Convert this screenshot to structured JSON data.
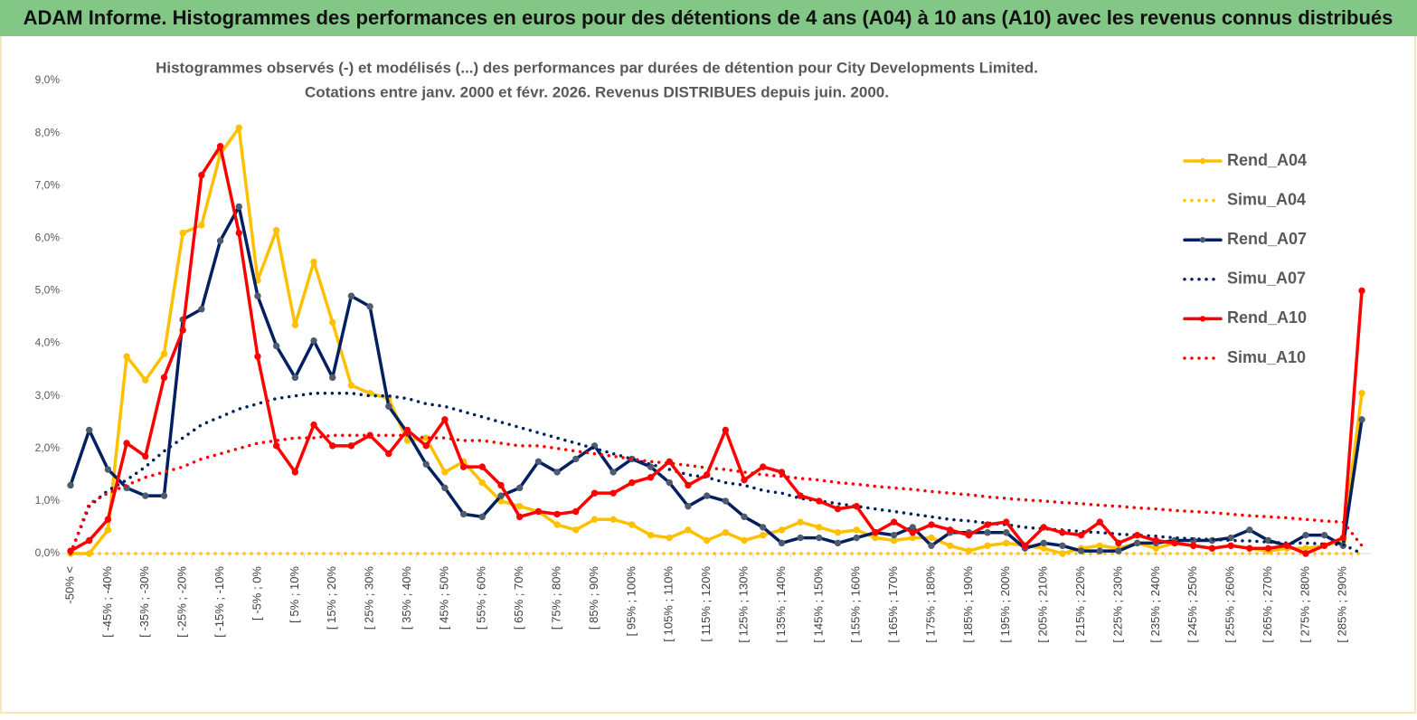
{
  "header": {
    "title": "ADAM Informe. Histogrammes des performances en euros pour des détentions de 4 ans (A04) à 10 ans (A10) avec les revenus connus distribués"
  },
  "chart_data": {
    "type": "line",
    "title": [
      "Histogrammes observés (-) et modélisés (...) des performances par durées de détention pour City Developments Limited.",
      "Cotations entre janv. 2000 et févr. 2026. Revenus DISTRIBUES depuis juin. 2000."
    ],
    "categories": [
      "-50% <",
      null,
      "[ -45% ; -40%",
      null,
      "[ -35% ; -30%",
      null,
      "[ -25% ; -20%",
      null,
      "[ -15% ; -10%",
      null,
      "[ -5% ; 0%",
      null,
      "[ 5% ; 10%",
      null,
      "[ 15% ; 20%",
      null,
      "[ 25% ; 30%",
      null,
      "[ 35% ; 40%",
      null,
      "[ 45% ; 50%",
      null,
      "[ 55% ; 60%",
      null,
      "[ 65% ; 70%",
      null,
      "[ 75% ; 80%",
      null,
      "[ 85% ; 90%",
      null,
      "[ 95% ; 100%",
      null,
      "[ 105% ; 110%",
      null,
      "[ 115% ; 120%",
      null,
      "[ 125% ; 130%",
      null,
      "[ 135% ; 140%",
      null,
      "[ 145% ; 150%",
      null,
      "[ 155% ; 160%",
      null,
      "[ 165% ; 170%",
      null,
      "[ 175% ; 180%",
      null,
      "[ 185% ; 190%",
      null,
      "[ 195% ; 200%",
      null,
      "[ 205% ; 210%",
      null,
      "[ 215% ; 220%",
      null,
      "[ 225% ; 230%",
      null,
      "[ 235% ; 240%",
      null,
      "[ 245% ; 250%",
      null,
      "[ 255% ; 260%",
      null,
      "[ 265% ; 270%",
      null,
      "[ 275% ; 280%",
      null,
      "[ 285% ; 290%",
      null
    ],
    "series": [
      {
        "name": "Rend_A04",
        "color": "#ffc000",
        "style": "solid",
        "markers": true,
        "values": [
          0,
          0,
          0.45,
          3.75,
          3.3,
          3.8,
          6.1,
          6.25,
          7.6,
          8.1,
          5.2,
          6.15,
          4.35,
          5.55,
          4.4,
          3.2,
          3.05,
          2.95,
          2.15,
          2.2,
          1.55,
          1.75,
          1.35,
          1.0,
          0.9,
          0.8,
          0.55,
          0.45,
          0.65,
          0.65,
          0.55,
          0.35,
          0.3,
          0.45,
          0.25,
          0.4,
          0.25,
          0.35,
          0.45,
          0.6,
          0.5,
          0.4,
          0.45,
          0.3,
          0.25,
          0.3,
          0.3,
          0.15,
          0.05,
          0.15,
          0.2,
          0.15,
          0.1,
          0,
          0.1,
          0.15,
          0.1,
          0.2,
          0.1,
          0.2,
          0.15,
          0.1,
          0.15,
          0.1,
          0.05,
          0.1,
          0.1,
          0.15,
          0.25,
          3.05
        ]
      },
      {
        "name": "Simu_A04",
        "color": "#ffc000",
        "style": "dotted",
        "markers": false,
        "values": [
          0,
          0,
          0,
          0,
          0,
          0,
          0,
          0,
          0,
          0,
          0,
          0,
          0,
          0,
          0,
          0,
          0,
          0,
          0,
          0,
          0,
          0,
          0,
          0,
          0,
          0,
          0,
          0,
          0,
          0,
          0,
          0,
          0,
          0,
          0,
          0,
          0,
          0,
          0,
          0,
          0,
          0,
          0,
          0,
          0,
          0,
          0,
          0,
          0,
          0,
          0,
          0,
          0,
          0,
          0,
          0,
          0,
          0,
          0,
          0,
          0,
          0,
          0,
          0,
          0,
          0,
          0,
          0,
          0,
          0
        ]
      },
      {
        "name": "Rend_A07",
        "color": "#002060",
        "marker_color": "#4f5b6e",
        "style": "solid",
        "markers": true,
        "values": [
          1.3,
          2.35,
          1.6,
          1.25,
          1.1,
          1.1,
          4.45,
          4.65,
          5.95,
          6.6,
          4.9,
          3.95,
          3.35,
          4.05,
          3.35,
          4.9,
          4.7,
          2.8,
          2.3,
          1.7,
          1.25,
          0.75,
          0.7,
          1.1,
          1.25,
          1.75,
          1.55,
          1.8,
          2.05,
          1.55,
          1.8,
          1.65,
          1.35,
          0.9,
          1.1,
          1.0,
          0.7,
          0.5,
          0.2,
          0.3,
          0.3,
          0.2,
          0.3,
          0.4,
          0.35,
          0.5,
          0.15,
          0.4,
          0.4,
          0.4,
          0.4,
          0.1,
          0.2,
          0.15,
          0.05,
          0.05,
          0.05,
          0.2,
          0.2,
          0.25,
          0.25,
          0.25,
          0.3,
          0.45,
          0.25,
          0.15,
          0.35,
          0.35,
          0.15,
          2.55
        ]
      },
      {
        "name": "Simu_A07",
        "color": "#002060",
        "style": "dotted",
        "markers": false,
        "values": [
          0,
          0.9,
          1.2,
          1.4,
          1.65,
          1.95,
          2.2,
          2.45,
          2.6,
          2.75,
          2.85,
          2.95,
          3.0,
          3.05,
          3.05,
          3.05,
          3.0,
          3.0,
          2.95,
          2.85,
          2.8,
          2.7,
          2.6,
          2.5,
          2.4,
          2.3,
          2.2,
          2.1,
          2.0,
          1.9,
          1.8,
          1.7,
          1.6,
          1.5,
          1.45,
          1.35,
          1.3,
          1.2,
          1.15,
          1.05,
          1.0,
          0.95,
          0.9,
          0.85,
          0.8,
          0.75,
          0.7,
          0.65,
          0.62,
          0.58,
          0.55,
          0.5,
          0.47,
          0.45,
          0.42,
          0.4,
          0.37,
          0.35,
          0.33,
          0.3,
          0.28,
          0.27,
          0.25,
          0.24,
          0.22,
          0.2,
          0.2,
          0.18,
          0.17,
          0
        ]
      },
      {
        "name": "Rend_A10",
        "color": "#ff0000",
        "style": "solid",
        "markers": true,
        "values": [
          0.05,
          0.25,
          0.65,
          2.1,
          1.85,
          3.35,
          4.25,
          7.2,
          7.75,
          6.1,
          3.75,
          2.05,
          1.55,
          2.45,
          2.05,
          2.05,
          2.25,
          1.9,
          2.35,
          2.05,
          2.55,
          1.65,
          1.65,
          1.3,
          0.7,
          0.8,
          0.75,
          0.8,
          1.15,
          1.15,
          1.35,
          1.45,
          1.75,
          1.3,
          1.5,
          2.35,
          1.4,
          1.65,
          1.55,
          1.1,
          1.0,
          0.85,
          0.9,
          0.4,
          0.6,
          0.4,
          0.55,
          0.45,
          0.35,
          0.55,
          0.6,
          0.15,
          0.5,
          0.4,
          0.35,
          0.6,
          0.2,
          0.35,
          0.25,
          0.2,
          0.15,
          0.1,
          0.15,
          0.1,
          0.1,
          0.15,
          0,
          0.15,
          0.3,
          5.0
        ]
      },
      {
        "name": "Simu_A10",
        "color": "#ff0000",
        "style": "dotted",
        "markers": false,
        "values": [
          0,
          0.95,
          1.15,
          1.3,
          1.45,
          1.55,
          1.65,
          1.8,
          1.9,
          2.0,
          2.1,
          2.15,
          2.2,
          2.2,
          2.25,
          2.25,
          2.25,
          2.25,
          2.25,
          2.2,
          2.2,
          2.15,
          2.15,
          2.1,
          2.05,
          2.05,
          2.0,
          1.95,
          1.9,
          1.85,
          1.8,
          1.75,
          1.72,
          1.68,
          1.63,
          1.6,
          1.55,
          1.5,
          1.47,
          1.43,
          1.4,
          1.35,
          1.32,
          1.28,
          1.25,
          1.22,
          1.18,
          1.15,
          1.12,
          1.08,
          1.05,
          1.02,
          1.0,
          0.97,
          0.95,
          0.92,
          0.9,
          0.87,
          0.85,
          0.82,
          0.8,
          0.78,
          0.75,
          0.72,
          0.7,
          0.68,
          0.65,
          0.62,
          0.6,
          0.15
        ]
      }
    ],
    "ylim": [
      0,
      9
    ],
    "yticks": [
      {
        "value": 0,
        "label": "0,0%"
      },
      {
        "value": 1,
        "label": "1,0%"
      },
      {
        "value": 2,
        "label": "2,0%"
      },
      {
        "value": 3,
        "label": "3,0%"
      },
      {
        "value": 4,
        "label": "4,0%"
      },
      {
        "value": 5,
        "label": "5,0%"
      },
      {
        "value": 6,
        "label": "6,0%"
      },
      {
        "value": 7,
        "label": "7,0%"
      },
      {
        "value": 8,
        "label": "8,0%"
      },
      {
        "value": 9,
        "label": "9,0%"
      }
    ],
    "legend": "right"
  }
}
